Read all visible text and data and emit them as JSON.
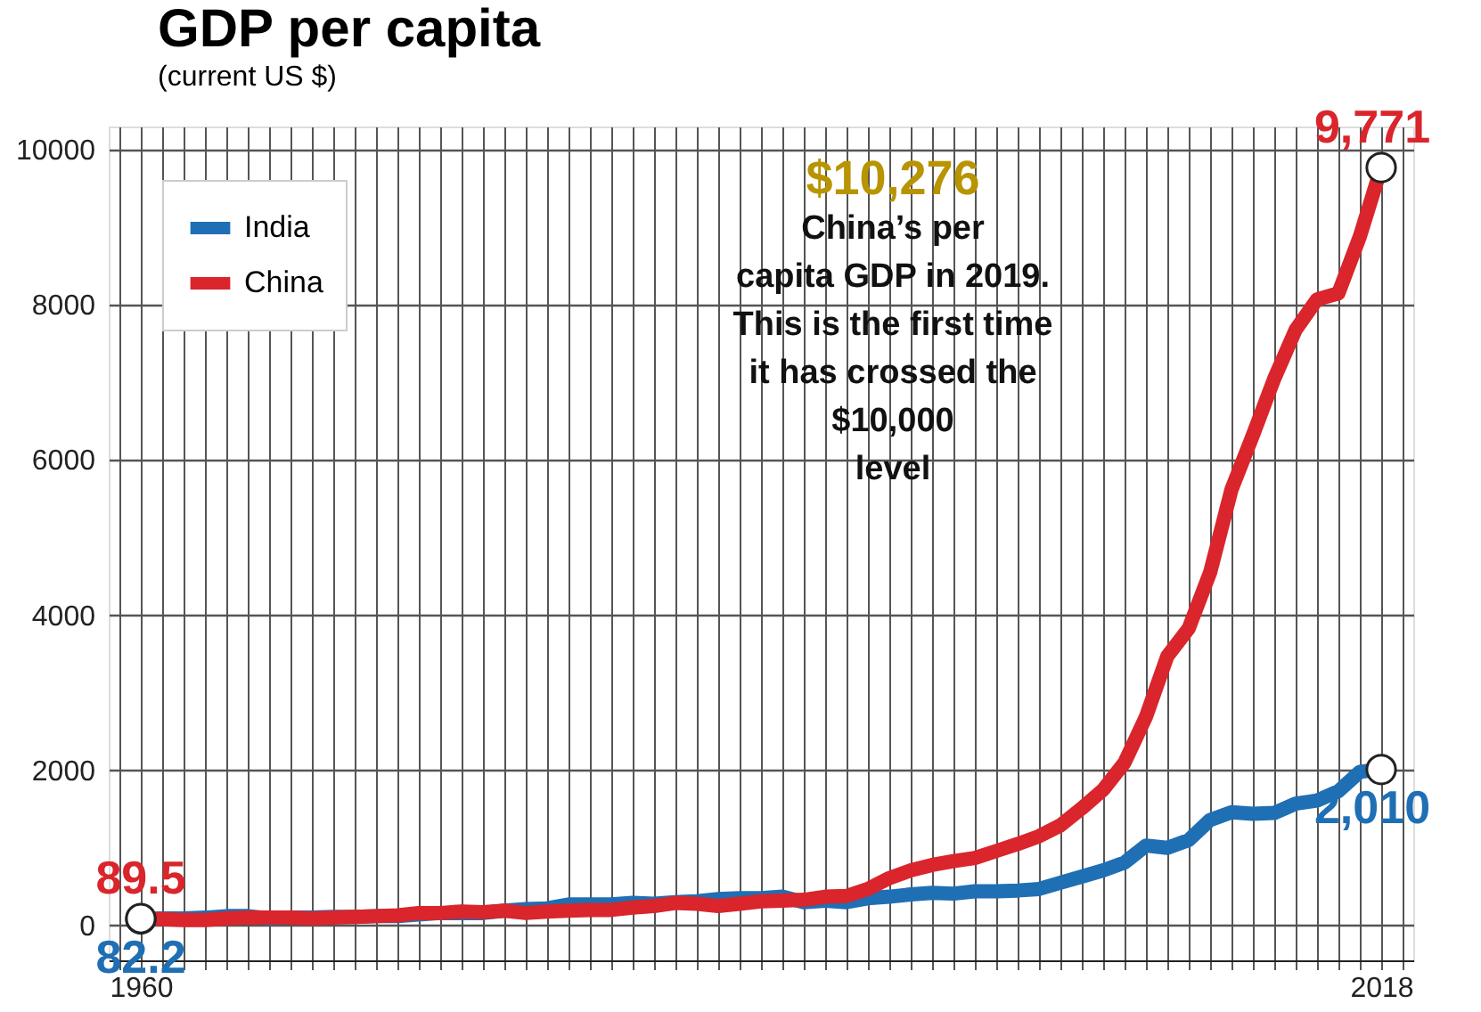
{
  "chart_data": {
    "type": "line",
    "title": "GDP per capita",
    "subtitle": "(current US $)",
    "x": [
      1960,
      1961,
      1962,
      1963,
      1964,
      1965,
      1966,
      1967,
      1968,
      1969,
      1970,
      1971,
      1972,
      1973,
      1974,
      1975,
      1976,
      1977,
      1978,
      1979,
      1980,
      1981,
      1982,
      1983,
      1984,
      1985,
      1986,
      1987,
      1988,
      1989,
      1990,
      1991,
      1992,
      1993,
      1994,
      1995,
      1996,
      1997,
      1998,
      1999,
      2000,
      2001,
      2002,
      2003,
      2004,
      2005,
      2006,
      2007,
      2008,
      2009,
      2010,
      2011,
      2012,
      2013,
      2014,
      2015,
      2016,
      2017,
      2018
    ],
    "series": [
      {
        "name": "India",
        "color": "#1f6fb4",
        "values": [
          82.2,
          90,
          90,
          100,
          120,
          120,
          90,
          100,
          100,
          110,
          110,
          120,
          120,
          140,
          160,
          160,
          160,
          190,
          210,
          220,
          270,
          270,
          270,
          290,
          280,
          300,
          310,
          340,
          350,
          350,
          370,
          300,
          320,
          300,
          350,
          370,
          400,
          420,
          410,
          440,
          440,
          450,
          470,
          550,
          630,
          710,
          810,
          1030,
          1000,
          1100,
          1360,
          1460,
          1440,
          1450,
          1570,
          1610,
          1730,
          1980,
          2010
        ],
        "value_labels": [
          "82.2",
          null,
          null,
          null,
          null,
          null,
          null,
          null,
          null,
          null,
          null,
          null,
          null,
          null,
          null,
          null,
          null,
          null,
          null,
          null,
          null,
          null,
          null,
          null,
          null,
          null,
          null,
          null,
          null,
          null,
          null,
          null,
          null,
          null,
          null,
          null,
          null,
          null,
          null,
          null,
          null,
          null,
          null,
          null,
          null,
          null,
          null,
          null,
          null,
          null,
          null,
          null,
          null,
          null,
          null,
          null,
          null,
          null,
          "2,010"
        ]
      },
      {
        "name": "China",
        "color": "#d9252b",
        "values": [
          89.5,
          80,
          70,
          70,
          90,
          100,
          100,
          100,
          90,
          100,
          110,
          120,
          130,
          160,
          160,
          180,
          170,
          190,
          160,
          180,
          190,
          200,
          200,
          230,
          250,
          290,
          280,
          250,
          280,
          310,
          320,
          330,
          370,
          380,
          470,
          610,
          710,
          780,
          830,
          870,
          960,
          1050,
          1150,
          1290,
          1510,
          1750,
          2100,
          2690,
          3470,
          3830,
          4550,
          5620,
          6320,
          7050,
          7680,
          8070,
          8150,
          8880,
          9771
        ],
        "value_labels": [
          "89.5",
          null,
          null,
          null,
          null,
          null,
          null,
          null,
          null,
          null,
          null,
          null,
          null,
          null,
          null,
          null,
          null,
          null,
          null,
          null,
          null,
          null,
          null,
          null,
          null,
          null,
          null,
          null,
          null,
          null,
          null,
          null,
          null,
          null,
          null,
          null,
          null,
          null,
          null,
          null,
          null,
          null,
          null,
          null,
          null,
          null,
          null,
          null,
          null,
          null,
          null,
          null,
          null,
          null,
          null,
          null,
          null,
          null,
          "9,771"
        ]
      }
    ],
    "xlim": [
      1958.5,
      2019.5
    ],
    "xticks": [
      {
        "value": 1959,
        "label": null
      },
      1960,
      {
        "value": 1961,
        "label": null
      },
      {
        "value": 1962,
        "label": null
      },
      {
        "value": 1963,
        "label": null
      },
      {
        "value": 1964,
        "label": null
      },
      {
        "value": 1965,
        "label": null
      },
      {
        "value": 1966,
        "label": null
      },
      {
        "value": 1967,
        "label": null
      },
      {
        "value": 1968,
        "label": null
      },
      {
        "value": 1969,
        "label": null
      },
      {
        "value": 1970,
        "label": null
      },
      {
        "value": 1971,
        "label": null
      },
      {
        "value": 1972,
        "label": null
      },
      {
        "value": 1973,
        "label": null
      },
      {
        "value": 1974,
        "label": null
      },
      {
        "value": 1975,
        "label": null
      },
      {
        "value": 1976,
        "label": null
      },
      {
        "value": 1977,
        "label": null
      },
      {
        "value": 1978,
        "label": null
      },
      {
        "value": 1979,
        "label": null
      },
      {
        "value": 1980,
        "label": null
      },
      {
        "value": 1981,
        "label": null
      },
      {
        "value": 1982,
        "label": null
      },
      {
        "value": 1983,
        "label": null
      },
      {
        "value": 1984,
        "label": null
      },
      {
        "value": 1985,
        "label": null
      },
      {
        "value": 1986,
        "label": null
      },
      {
        "value": 1987,
        "label": null
      },
      {
        "value": 1988,
        "label": null
      },
      {
        "value": 1989,
        "label": null
      },
      {
        "value": 1990,
        "label": null
      },
      {
        "value": 1991,
        "label": null
      },
      {
        "value": 1992,
        "label": null
      },
      {
        "value": 1993,
        "label": null
      },
      {
        "value": 1994,
        "label": null
      },
      {
        "value": 1995,
        "label": null
      },
      {
        "value": 1996,
        "label": null
      },
      {
        "value": 1997,
        "label": null
      },
      {
        "value": 1998,
        "label": null
      },
      {
        "value": 1999,
        "label": null
      },
      {
        "value": 2000,
        "label": null
      },
      {
        "value": 2001,
        "label": null
      },
      {
        "value": 2002,
        "label": null
      },
      {
        "value": 2003,
        "label": null
      },
      {
        "value": 2004,
        "label": null
      },
      {
        "value": 2005,
        "label": null
      },
      {
        "value": 2006,
        "label": null
      },
      {
        "value": 2007,
        "label": null
      },
      {
        "value": 2008,
        "label": null
      },
      {
        "value": 2009,
        "label": null
      },
      {
        "value": 2010,
        "label": null
      },
      {
        "value": 2011,
        "label": null
      },
      {
        "value": 2012,
        "label": null
      },
      {
        "value": 2013,
        "label": null
      },
      {
        "value": 2014,
        "label": null
      },
      {
        "value": 2015,
        "label": null
      },
      {
        "value": 2016,
        "label": null
      },
      {
        "value": 2017,
        "label": null
      },
      2018,
      {
        "value": 2019,
        "label": null
      }
    ],
    "ylim": [
      -450,
      10300
    ],
    "yticks": [
      0,
      2000,
      4000,
      6000,
      8000,
      10000
    ],
    "grid": true,
    "legend": "top left",
    "marker": "none",
    "line_style": "solid",
    "annotations": [
      "$10,276",
      "China’s per",
      "capita GDP in 2019.",
      "This is the first time",
      "it has crossed the",
      "$10,000",
      "level"
    ]
  }
}
